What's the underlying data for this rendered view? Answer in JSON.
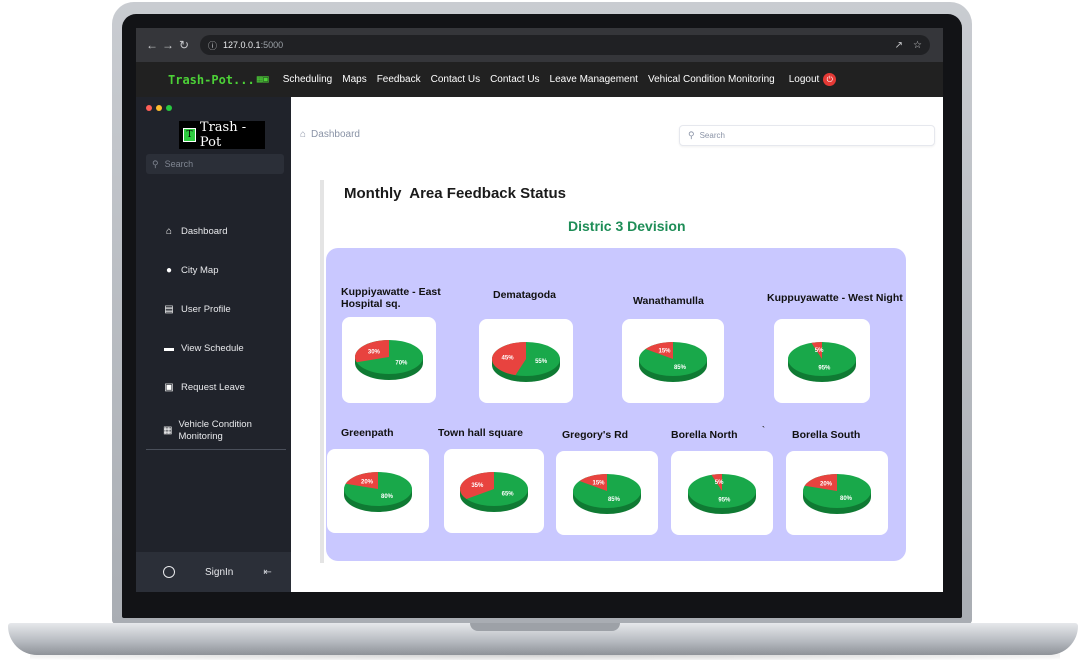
{
  "browser": {
    "back_icon": "arrow-left-icon",
    "url_host": "127.0.0.1",
    "url_port": ":5000"
  },
  "appnav": {
    "brand": "Trash-Pot...",
    "menu": [
      "Scheduling",
      "Maps",
      "Feedback",
      "Contact Us",
      "Contact Us",
      "Leave Management",
      "Vehical Condition Monitoring"
    ],
    "logout": "Logout"
  },
  "sidebar": {
    "logo_text": "Trash - Pot",
    "search_placeholder": "Search",
    "items": [
      {
        "label": "Dashboard",
        "icon": "home-icon"
      },
      {
        "label": "City Map",
        "icon": "map-pin-icon"
      },
      {
        "label": "User Profile",
        "icon": "profile-icon"
      },
      {
        "label": "View Schedule",
        "icon": "calendar-icon"
      },
      {
        "label": "Request Leave",
        "icon": "request-icon"
      },
      {
        "label": "Vehicle Condition Monitoring",
        "icon": "monitor-icon"
      }
    ],
    "signin": "SignIn"
  },
  "main": {
    "breadcrumb": "Dashboard",
    "search_placeholder": "Search",
    "title": "Monthly  Area Feedback Status",
    "division": "Distric 3 Devision",
    "stray_mark": "`"
  },
  "chart_data": {
    "type": "pie",
    "series_colors": {
      "negative": "#e8433f",
      "positive": "#19a84a"
    },
    "areas": [
      {
        "name": "Kuppiyawatte - East Hospital sq.",
        "red": 30,
        "green": 70,
        "red_label": "30%",
        "green_label": "70%"
      },
      {
        "name": "Dematagoda",
        "red": 45,
        "green": 55,
        "red_label": "45%",
        "green_label": "55%"
      },
      {
        "name": "Wanathamulla",
        "red": 15,
        "green": 85,
        "red_label": "15%",
        "green_label": "85%"
      },
      {
        "name": "Kuppuyawatte - West Night",
        "red": 5,
        "green": 95,
        "red_label": "5%",
        "green_label": "95%"
      },
      {
        "name": "Greenpath",
        "red": 20,
        "green": 80,
        "red_label": "20%",
        "green_label": "80%"
      },
      {
        "name": "Town hall square",
        "red": 35,
        "green": 65,
        "red_label": "35%",
        "green_label": "65%"
      },
      {
        "name": "Gregory's Rd",
        "red": 15,
        "green": 85,
        "red_label": "15%",
        "green_label": "85%"
      },
      {
        "name": "Borella North",
        "red": 5,
        "green": 95,
        "red_label": "5%",
        "green_label": "95%"
      },
      {
        "name": "Borella South",
        "red": 20,
        "green": 80,
        "red_label": "20%",
        "green_label": "80%"
      }
    ]
  }
}
